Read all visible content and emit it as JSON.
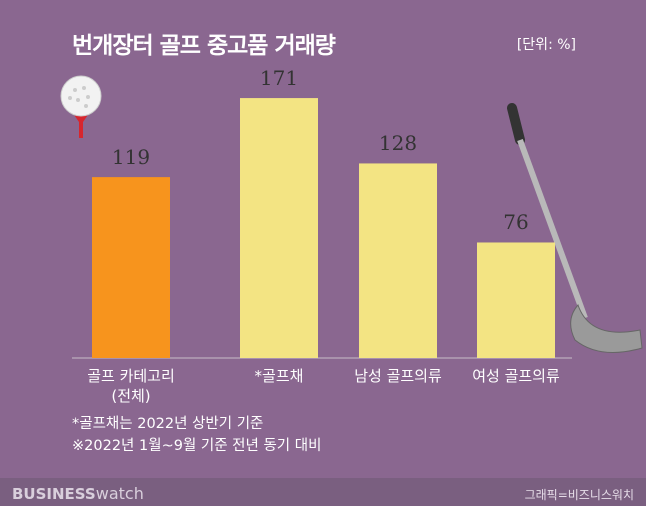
{
  "chart_data": {
    "type": "bar",
    "title": "번개장터 골프 중고품 거래량",
    "unit": "[단위: %]",
    "categories": [
      "골프 카테고리\n(전체)",
      "*골프채",
      "남성 골프의류",
      "여성 골프의류"
    ],
    "values": [
      119,
      171,
      128,
      76
    ],
    "colors": [
      "#f7941d",
      "#f3e483",
      "#f3e483",
      "#f3e483"
    ],
    "ylim": [
      0,
      200
    ],
    "notes": [
      "*골프채는 2022년 상반기 기준",
      "※2022년 1월~9월 기준 전년 동기 대비"
    ],
    "brand": "BUSINESS",
    "brand_sub": "watch",
    "credit": "그래픽=비즈니스워치"
  }
}
